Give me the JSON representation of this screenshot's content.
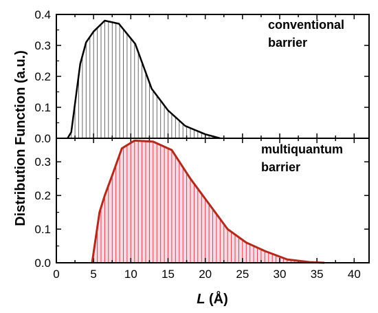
{
  "chart_data": [
    {
      "type": "area",
      "panel": "top",
      "annotation": [
        "conventional",
        "barrier"
      ],
      "ylim": [
        0,
        0.4
      ],
      "yticks": [
        "0.0",
        "0.1",
        "0.2",
        "0.3",
        "0.4"
      ],
      "xlim": [
        0,
        42
      ],
      "line_color": "#000000",
      "fill_color": "#ffffff",
      "hatch_color": "#555555",
      "x": [
        1.5,
        2.0,
        2.6,
        3.2,
        4.0,
        5.0,
        6.5,
        8.4,
        10.6,
        12.8,
        15.0,
        17.3,
        20.0,
        22.0
      ],
      "values": [
        0.0,
        0.02,
        0.13,
        0.24,
        0.31,
        0.345,
        0.38,
        0.37,
        0.305,
        0.16,
        0.09,
        0.04,
        0.013,
        0.0
      ]
    },
    {
      "type": "area",
      "panel": "bottom",
      "annotation": [
        "multiquantum",
        "barrier"
      ],
      "ylim": [
        0,
        0.37
      ],
      "yticks": [
        "0.0",
        "0.1",
        "0.2",
        "0.3"
      ],
      "xlim": [
        0,
        42
      ],
      "line_color": "#b22a1c",
      "fill_color": "#f7d9e4",
      "hatch_color": "#d6343a",
      "x": [
        4.8,
        5.8,
        6.5,
        7.5,
        8.8,
        10.5,
        13.0,
        15.5,
        18.0,
        20.5,
        23.0,
        25.5,
        28.0,
        31.0,
        34.0,
        36.0
      ],
      "values": [
        0.0,
        0.15,
        0.2,
        0.26,
        0.34,
        0.363,
        0.36,
        0.335,
        0.25,
        0.175,
        0.1,
        0.06,
        0.035,
        0.01,
        0.002,
        0.0
      ]
    }
  ],
  "axes": {
    "xticks": [
      "0",
      "5",
      "10",
      "15",
      "20",
      "25",
      "30",
      "35",
      "40"
    ],
    "xlabel_italic": "L",
    "xlabel_unit": " (Å)",
    "ylabel": "Distribution Function (a.u.)"
  }
}
